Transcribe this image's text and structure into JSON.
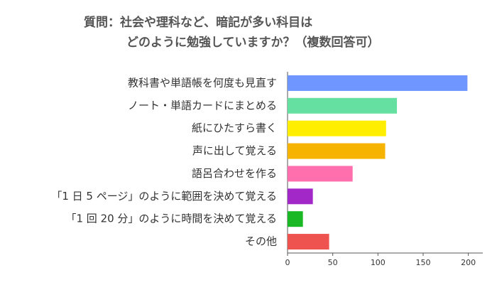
{
  "chart_data": {
    "type": "bar",
    "orientation": "horizontal",
    "title": [
      "質問：社会や理科など、暗記が多い科目は",
      "どのように勉強していますか？（複数回答可）"
    ],
    "categories": [
      "教科書や単語帳を何度も見直す",
      "ノート・単語カードにまとめる",
      "紙にひたすら書く",
      "声に出して覚える",
      "語呂合わせを作る",
      "「1 日 5 ページ」のように範囲を決めて覚える",
      "「1 回 20 分」のように時間を決めて覚える",
      "その他"
    ],
    "values": [
      199,
      121,
      109,
      108,
      72,
      28,
      17,
      46
    ],
    "colors": [
      "#6f96ff",
      "#66e0a0",
      "#ffee00",
      "#f6b400",
      "#ff6fae",
      "#a328c8",
      "#1ab824",
      "#ef5350"
    ],
    "xlim": [
      0,
      216
    ],
    "xticks": [
      0,
      50,
      100,
      150,
      200
    ],
    "grid": false
  }
}
